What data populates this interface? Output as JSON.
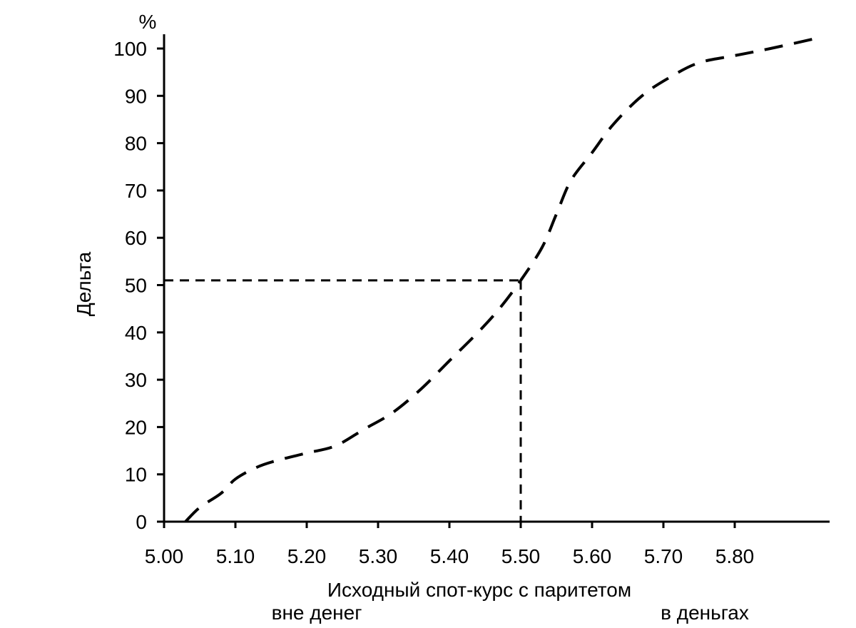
{
  "chart_data": {
    "type": "line",
    "title": "",
    "ylabel": "Дельта",
    "yunit": "%",
    "xlabel": "Исходный спот-курс с паритетом",
    "annotations": {
      "left": "вне денег",
      "right": "в деньгах"
    },
    "xlim": [
      5.0,
      5.9
    ],
    "ylim": [
      0,
      100
    ],
    "x_ticks": [
      "5.00",
      "5.10",
      "5.20",
      "5.30",
      "5.40",
      "5.50",
      "5.60",
      "5.70",
      "5.80"
    ],
    "y_ticks": [
      "0",
      "10",
      "20",
      "30",
      "40",
      "50",
      "60",
      "70",
      "80",
      "90",
      "100"
    ],
    "grid": false,
    "series": [
      {
        "points": [
          [
            5.03,
            0
          ],
          [
            5.05,
            3
          ],
          [
            5.08,
            6
          ],
          [
            5.1,
            9
          ],
          [
            5.13,
            11.5
          ],
          [
            5.16,
            13
          ],
          [
            5.2,
            14.5
          ],
          [
            5.24,
            16
          ],
          [
            5.28,
            19.5
          ],
          [
            5.32,
            23
          ],
          [
            5.36,
            28
          ],
          [
            5.4,
            34
          ],
          [
            5.44,
            40
          ],
          [
            5.47,
            45
          ],
          [
            5.5,
            51
          ],
          [
            5.53,
            58
          ],
          [
            5.55,
            65
          ],
          [
            5.57,
            72
          ],
          [
            5.6,
            78
          ],
          [
            5.63,
            84
          ],
          [
            5.67,
            90
          ],
          [
            5.71,
            94
          ],
          [
            5.75,
            97
          ],
          [
            5.8,
            98.5
          ],
          [
            5.85,
            100
          ],
          [
            5.91,
            102
          ]
        ]
      }
    ],
    "reference": {
      "x": 5.5,
      "y": 51
    }
  }
}
